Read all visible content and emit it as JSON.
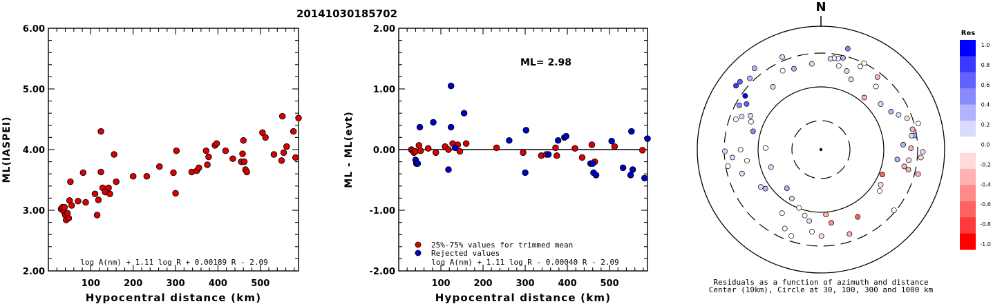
{
  "title": "20141030185702",
  "chart_data": [
    {
      "type": "scatter",
      "xlabel": "Hypocentral distance (km)",
      "ylabel": "ML(IASPEI)",
      "xlim": [
        0,
        590
      ],
      "ylim": [
        2.0,
        6.0
      ],
      "xticks": [
        "100",
        "200",
        "300",
        "400",
        "500"
      ],
      "yticks": [
        "2.00",
        "3.00",
        "4.00",
        "5.00",
        "6.00"
      ],
      "formula": "log A(nm) + 1.11 log R + 0.00189 R - 2.09",
      "series": [
        {
          "color": "#dd0000",
          "points": [
            [
              30,
              3.02
            ],
            [
              33,
              3.05
            ],
            [
              36,
              2.98
            ],
            [
              38,
              3.05
            ],
            [
              40,
              2.92
            ],
            [
              42,
              2.84
            ],
            [
              45,
              2.95
            ],
            [
              48,
              2.87
            ],
            [
              50,
              3.16
            ],
            [
              52,
              3.47
            ],
            [
              55,
              3.08
            ],
            [
              70,
              3.15
            ],
            [
              82,
              3.62
            ],
            [
              88,
              3.13
            ],
            [
              110,
              3.27
            ],
            [
              115,
              2.92
            ],
            [
              118,
              3.17
            ],
            [
              124,
              4.3
            ],
            [
              124,
              3.63
            ],
            [
              128,
              3.37
            ],
            [
              134,
              3.3
            ],
            [
              142,
              3.37
            ],
            [
              145,
              3.27
            ],
            [
              155,
              3.92
            ],
            [
              160,
              3.47
            ],
            [
              200,
              3.56
            ],
            [
              232,
              3.56
            ],
            [
              262,
              3.72
            ],
            [
              295,
              3.62
            ],
            [
              300,
              3.28
            ],
            [
              302,
              3.98
            ],
            [
              338,
              3.63
            ],
            [
              350,
              3.65
            ],
            [
              355,
              3.7
            ],
            [
              372,
              3.98
            ],
            [
              375,
              3.75
            ],
            [
              378,
              3.88
            ],
            [
              393,
              4.07
            ],
            [
              397,
              4.1
            ],
            [
              418,
              3.98
            ],
            [
              435,
              3.85
            ],
            [
              455,
              3.8
            ],
            [
              458,
              3.93
            ],
            [
              460,
              4.15
            ],
            [
              462,
              3.8
            ],
            [
              465,
              3.67
            ],
            [
              468,
              3.63
            ],
            [
              505,
              4.28
            ],
            [
              512,
              4.2
            ],
            [
              532,
              3.92
            ],
            [
              550,
              3.82
            ],
            [
              552,
              4.55
            ],
            [
              555,
              3.95
            ],
            [
              562,
              4.05
            ],
            [
              578,
              4.3
            ],
            [
              583,
              3.87
            ],
            [
              590,
              4.52
            ],
            [
              592,
              4.42
            ]
          ]
        }
      ]
    },
    {
      "type": "scatter",
      "xlabel": "Hypocentral distance (km)",
      "ylabel": "ML - ML(evt)",
      "xlim": [
        0,
        590
      ],
      "ylim": [
        -2.0,
        2.0
      ],
      "xticks": [
        "100",
        "200",
        "300",
        "400",
        "500"
      ],
      "yticks": [
        "-2.00",
        "-1.00",
        "0.00",
        "1.00",
        "2.00"
      ],
      "annotation": "ML= 2.98",
      "formula": "log A(nm) + 1.11 log R - 0.00040 R - 2.09",
      "reference_line": 0.0,
      "series": [
        {
          "name": "25%-75% values for trimmed mean",
          "color": "#dd0000",
          "points": [
            [
              30,
              0.0
            ],
            [
              33,
              -0.02
            ],
            [
              36,
              -0.05
            ],
            [
              40,
              -0.03
            ],
            [
              48,
              0.07
            ],
            [
              52,
              -0.02
            ],
            [
              70,
              0.02
            ],
            [
              88,
              -0.05
            ],
            [
              110,
              0.05
            ],
            [
              118,
              0.0
            ],
            [
              128,
              0.1
            ],
            [
              140,
              0.08
            ],
            [
              145,
              -0.03
            ],
            [
              160,
              0.1
            ],
            [
              232,
              0.03
            ],
            [
              295,
              -0.05
            ],
            [
              338,
              -0.1
            ],
            [
              350,
              -0.08
            ],
            [
              372,
              0.03
            ],
            [
              375,
              -0.1
            ],
            [
              418,
              0.02
            ],
            [
              435,
              -0.13
            ],
            [
              458,
              0.08
            ],
            [
              465,
              -0.2
            ],
            [
              512,
              0.05
            ],
            [
              578,
              -0.01
            ],
            [
              592,
              0.06
            ]
          ]
        },
        {
          "name": "Rejected values",
          "color": "#0000cc",
          "points": [
            [
              40,
              -0.17
            ],
            [
              42,
              -0.23
            ],
            [
              45,
              -0.23
            ],
            [
              50,
              0.37
            ],
            [
              82,
              0.45
            ],
            [
              124,
              1.05
            ],
            [
              124,
              0.37
            ],
            [
              118,
              -0.33
            ],
            [
              134,
              0.03
            ],
            [
              155,
              0.6
            ],
            [
              262,
              0.15
            ],
            [
              300,
              -0.38
            ],
            [
              302,
              0.32
            ],
            [
              355,
              -0.08
            ],
            [
              378,
              0.15
            ],
            [
              393,
              0.2
            ],
            [
              397,
              0.22
            ],
            [
              455,
              -0.23
            ],
            [
              460,
              -0.23
            ],
            [
              462,
              -0.38
            ],
            [
              468,
              -0.42
            ],
            [
              505,
              0.14
            ],
            [
              532,
              -0.3
            ],
            [
              550,
              -0.42
            ],
            [
              552,
              0.3
            ],
            [
              555,
              -0.33
            ],
            [
              583,
              -0.47
            ],
            [
              590,
              0.18
            ]
          ]
        }
      ]
    },
    {
      "type": "polar-scatter",
      "north_label": "N",
      "caption_line1": "Residuals as a function of azimuth and distance",
      "caption_line2": "Center (10km), Circle at 30, 100, 300 and 1000 km",
      "colorbar_title": "Res",
      "colorbar_ticks": [
        "1.0",
        "0.8",
        "0.6",
        "0.4",
        "0.2",
        "0.0",
        "-0.2",
        "-0.4",
        "-0.6",
        "-0.8",
        "-1.0"
      ],
      "colorbar_colors": [
        "#0000ff",
        "#3a3aff",
        "#6262ff",
        "#8a8aff",
        "#b2b2ff",
        "#dadaff",
        "#ffffff",
        "#ffdada",
        "#ffb2b2",
        "#ff8a8a",
        "#ff6262",
        "#ff3a3a",
        "#ff0000"
      ],
      "points": [
        [
          340,
          0.1,
          75,
          -10,
          -8
        ],
        [
          325,
          0.2,
          58,
          -10,
          -6
        ],
        [
          322,
          0.3,
          80,
          -8,
          -5
        ],
        [
          316,
          0.4,
          78,
          -6,
          -3
        ],
        [
          311,
          0.6,
          83,
          -5,
          -1
        ],
        [
          308,
          0.8,
          85,
          -3,
          1
        ],
        [
          306,
          1.0,
          75,
          -1,
          1
        ],
        [
          303,
          0.7,
          71,
          -1,
          3
        ],
        [
          301,
          0.5,
          75,
          -3,
          5
        ],
        [
          298,
          0.2,
          62,
          -4,
          3
        ],
        [
          296,
          0.1,
          70,
          -2,
          7
        ],
        [
          293,
          0.0,
          62,
          1,
          3
        ],
        [
          290,
          0.0,
          75,
          3,
          2
        ],
        [
          286,
          0.5,
          60,
          5,
          3
        ],
        [
          274,
          0.0,
          42,
          -5,
          3
        ],
        [
          271,
          0.2,
          76,
          -3,
          5
        ],
        [
          268,
          0.0,
          65,
          0,
          -4
        ],
        [
          264,
          0.0,
          59,
          -2,
          5
        ],
        [
          262,
          0.1,
          70,
          -4,
          -6
        ],
        [
          258,
          0.0,
          78,
          2,
          -5
        ],
        [
          244,
          0.1,
          40,
          -8,
          -6
        ],
        [
          236,
          0.2,
          56,
          -4,
          -2
        ],
        [
          229,
          0.3,
          55,
          -6,
          -8
        ],
        [
          218,
          0.4,
          42,
          -3,
          -3
        ],
        [
          206,
          0.2,
          46,
          -6,
          -3
        ],
        [
          198,
          0.0,
          52,
          -3,
          -4
        ],
        [
          193,
          0.0,
          56,
          -1,
          -2
        ],
        [
          190,
          0.1,
          61,
          2,
          -4
        ],
        [
          185,
          0.0,
          64,
          -3,
          5
        ],
        [
          182,
          -0.2,
          69,
          5,
          2
        ],
        [
          178,
          -0.3,
          51,
          4,
          3
        ],
        [
          170,
          -0.5,
          58,
          -3,
          4
        ],
        [
          160,
          -0.3,
          74,
          -4,
          -2
        ],
        [
          150,
          -0.6,
          65,
          -5,
          -3
        ],
        [
          130,
          0.0,
          80,
          -4,
          -4
        ],
        [
          122,
          0.0,
          58,
          -3,
          5
        ],
        [
          118,
          -0.2,
          56,
          -2,
          4
        ],
        [
          114,
          -0.6,
          58,
          -6,
          -6
        ],
        [
          103,
          -0.4,
          68,
          2,
          -3
        ],
        [
          104,
          -0.3,
          74,
          -2,
          -3
        ],
        [
          102,
          -0.3,
          82,
          -3,
          5
        ],
        [
          98,
          -0.2,
          74,
          -4,
          -3
        ],
        [
          96,
          0.3,
          66,
          -7,
          2
        ],
        [
          95,
          -0.1,
          80,
          2,
          -1
        ],
        [
          92,
          0.1,
          83,
          -1,
          -2
        ],
        [
          87,
          -0.4,
          74,
          -2,
          5
        ],
        [
          86,
          0.3,
          65,
          3,
          1
        ],
        [
          80,
          0.3,
          79,
          -4,
          4
        ],
        [
          79,
          0.1,
          77,
          -4,
          6
        ],
        [
          77,
          0.0,
          79,
          3,
          -6
        ],
        [
          78,
          -0.3,
          74,
          3,
          -2
        ],
        [
          72,
          -0.1,
          75,
          -3,
          -4
        ],
        [
          64,
          0.2,
          68,
          3,
          3
        ],
        [
          62,
          0.3,
          68,
          -6,
          2
        ],
        [
          56,
          0.2,
          61,
          -4,
          -5
        ],
        [
          44,
          0.0,
          68,
          -5,
          -4
        ],
        [
          28,
          0.0,
          75,
          -6,
          -2
        ],
        [
          24,
          0.0,
          79,
          5,
          4
        ],
        [
          17,
          0.5,
          82,
          -4,
          -6
        ],
        [
          16,
          0.3,
          75,
          -5,
          -4
        ],
        [
          12,
          0.0,
          72,
          -2,
          -6
        ],
        [
          10,
          0.0,
          70,
          4,
          2
        ],
        [
          8,
          0.0,
          72,
          1,
          -5
        ],
        [
          5,
          0.1,
          75,
          2,
          2
        ],
        [
          355,
          0.2,
          72,
          -2,
          4
        ],
        [
          333,
          0.0,
          73,
          4,
          2
        ],
        [
          344,
          0.3,
          67,
          -6,
          -2
        ],
        [
          252,
          0.1,
          70,
          5,
          -4
        ],
        [
          40,
          -0.4,
          58,
          -4,
          4
        ],
        [
          38,
          -0.3,
          76,
          -2,
          2
        ],
        [
          26,
          -0.2,
          62,
          -5,
          -2
        ],
        [
          20,
          0.1,
          66,
          -3,
          -3
        ],
        [
          210,
          0.0,
          64,
          1,
          -7
        ],
        [
          202,
          0.0,
          72,
          -4,
          -5
        ],
        [
          200,
          0.0,
          75,
          3,
          -1
        ]
      ]
    }
  ]
}
